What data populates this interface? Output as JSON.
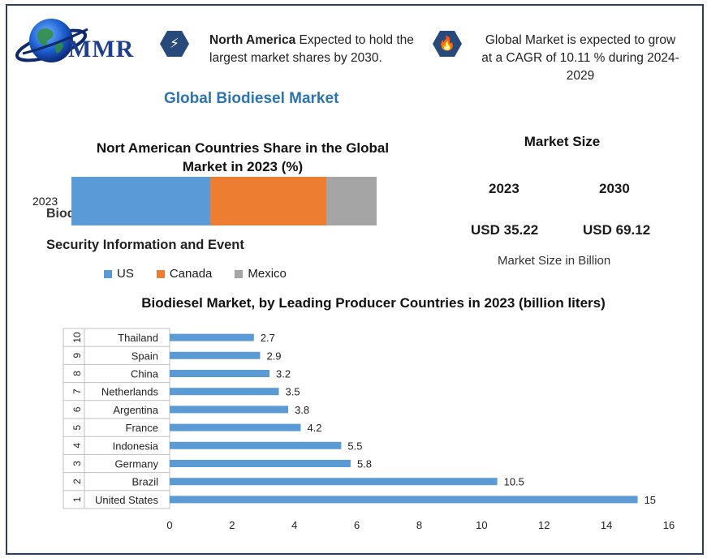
{
  "brand": {
    "logo_text": "MMR"
  },
  "callouts": {
    "left": {
      "bold": "North America",
      "rest": " Expected to hold the largest market shares by 2030."
    },
    "right": {
      "text": "Global Market is expected to grow at a CAGR of 10.11 % during 2024-2029"
    }
  },
  "main_title": "Global Biodiesel Market",
  "share_chart": {
    "title": "Nort American Countries Share in the Global Market in 2023 (%)",
    "year_label": "2023",
    "overlap_text": "Biod",
    "subtitle": "Security Information and Event",
    "segments": [
      {
        "name": "US",
        "value": 45.5,
        "color": "#5b9bd5"
      },
      {
        "name": "Canada",
        "value": 38.0,
        "color": "#ed7d31"
      },
      {
        "name": "Mexico",
        "value": 16.5,
        "color": "#a5a5a5"
      }
    ]
  },
  "market_size": {
    "title": "Market Size",
    "years": [
      "2023",
      "2030"
    ],
    "values": [
      "USD 35.22",
      "USD 69.12"
    ],
    "unit": "Market Size in Billion"
  },
  "chart_data": {
    "type": "bar",
    "orientation": "horizontal",
    "title": "Biodiesel Market, by Leading Producer Countries in 2023 (billion liters)",
    "ranks": [
      "1",
      "2",
      "3",
      "4",
      "5",
      "6",
      "7",
      "8",
      "9",
      "10"
    ],
    "categories": [
      "United States",
      "Brazil",
      "Germany",
      "Indonesia",
      "France",
      "Argentina",
      "Netherlands",
      "China",
      "Spain",
      "Thailand"
    ],
    "values": [
      15,
      10.5,
      5.8,
      5.5,
      4.2,
      3.8,
      3.5,
      3.2,
      2.9,
      2.7
    ],
    "value_labels": [
      "15",
      "10.5",
      "5.8",
      "5.5",
      "4.2",
      "3.8",
      "3.5",
      "3.2",
      "2.9",
      "2.7"
    ],
    "xlim": [
      0,
      16
    ],
    "xticks": [
      "0",
      "2",
      "4",
      "6",
      "8",
      "10",
      "12",
      "14",
      "16"
    ],
    "bar_color": "#5b9bd5",
    "grid": false
  }
}
